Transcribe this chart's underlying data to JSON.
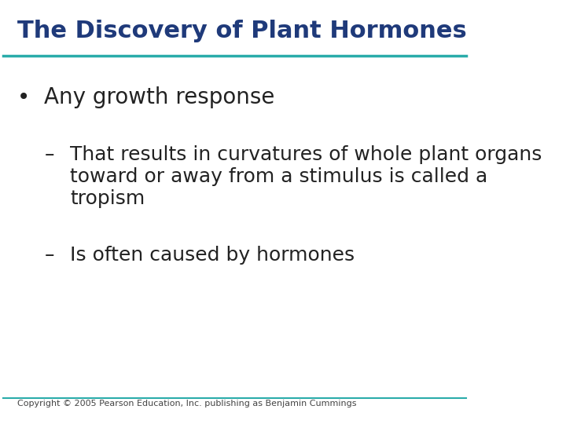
{
  "title": "The Discovery of Plant Hormones",
  "title_color": "#1F3A7A",
  "title_fontsize": 22,
  "title_bold": true,
  "line_color": "#2AACAA",
  "background_color": "#FFFFFF",
  "bullet_text": "Any growth response",
  "bullet_fontsize": 20,
  "bullet_color": "#222222",
  "sub_items": [
    "That results in curvatures of whole plant organs\ntoward or away from a stimulus is called a\ntropism",
    "Is often caused by hormones"
  ],
  "sub_fontsize": 18,
  "sub_color": "#222222",
  "footer_text": "Copyright © 2005 Pearson Education, Inc. publishing as Benjamin Cummings",
  "footer_fontsize": 8,
  "footer_color": "#444444"
}
